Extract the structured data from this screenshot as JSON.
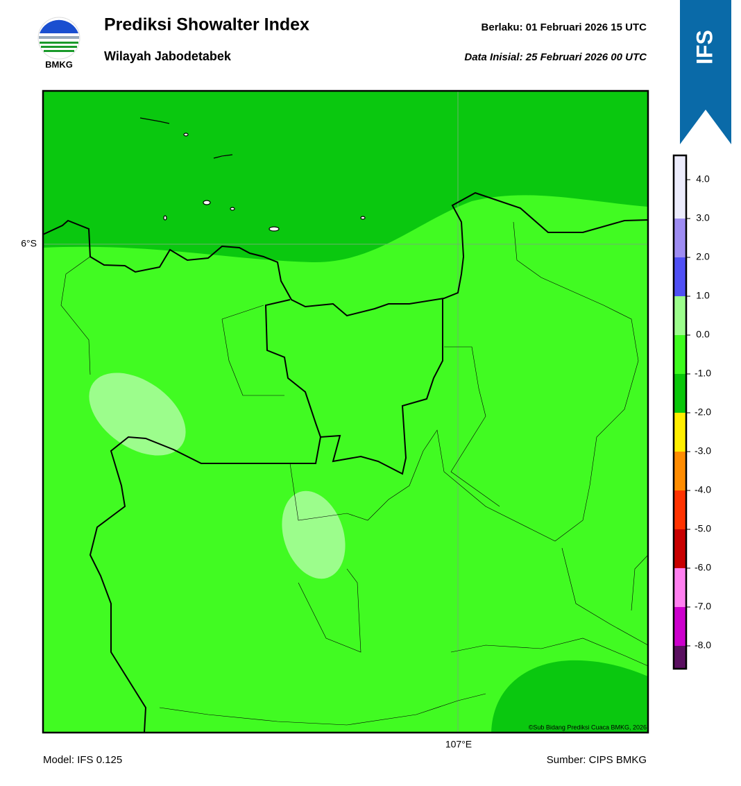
{
  "header": {
    "logo_text": "BMKG",
    "title": "Prediksi Showalter Index",
    "subtitle": "Wilayah Jabodetabek",
    "valid": "Berlaku:  01 Februari 2026 15 UTC",
    "init": "Data Inisial:  25 Februari 2026 00 UTC",
    "model_badge": "IFS"
  },
  "map": {
    "lat_label": "6°S",
    "lon_label": "107°E",
    "copyright": "©Sub Bidang Prediksi Cuaca BMKG, 2026"
  },
  "colorbar": {
    "ticks": [
      {
        "value": 4,
        "label": "4.0"
      },
      {
        "value": 3,
        "label": "3.0"
      },
      {
        "value": 2,
        "label": "2.0"
      },
      {
        "value": 1,
        "label": "1.0"
      },
      {
        "value": 0,
        "label": "0.0"
      },
      {
        "value": -1,
        "label": "-1.0"
      },
      {
        "value": -2,
        "label": "-2.0"
      },
      {
        "value": -3,
        "label": "-3.0"
      },
      {
        "value": -4,
        "label": "-4.0"
      },
      {
        "value": -5,
        "label": "-5.0"
      },
      {
        "value": -6,
        "label": "-6.0"
      },
      {
        "value": -7,
        "label": "-7.0"
      },
      {
        "value": -8,
        "label": "-8.0"
      }
    ],
    "colors": [
      "#ececfc",
      "#9e8cf2",
      "#5050f5",
      "#9cfd8c",
      "#3dfb1e",
      "#09c709",
      "#ffee00",
      "#ff8c00",
      "#ff3300",
      "#c80000",
      "#ff80f0",
      "#cc00cc",
      "#5a1060"
    ]
  },
  "footer": {
    "model": "Model: IFS 0.125",
    "source": "Sumber: CIPS BMKG"
  }
}
